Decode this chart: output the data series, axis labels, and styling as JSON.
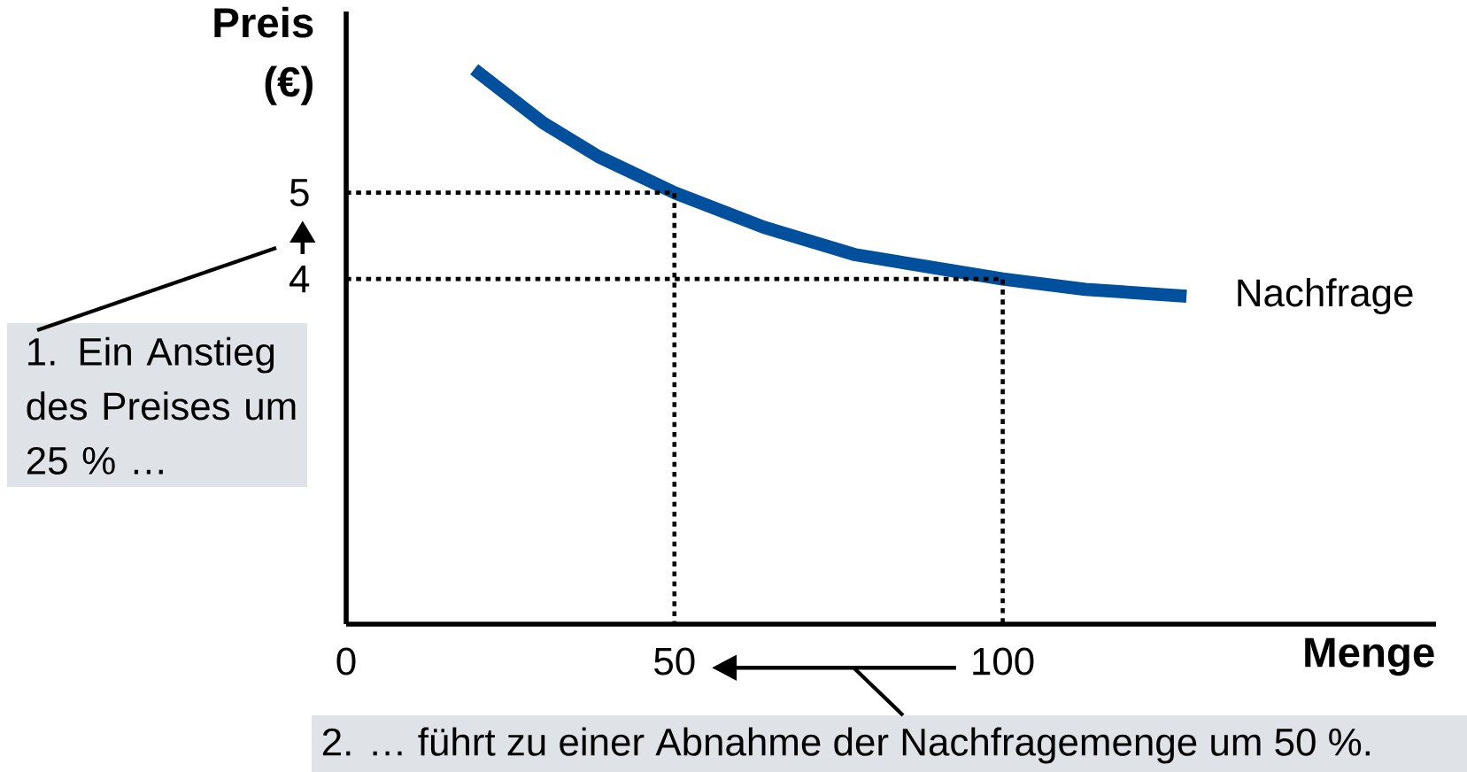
{
  "chart_data": {
    "type": "line",
    "xlabel": "Menge",
    "ylabel": "Preis (€)",
    "xlim": [
      0,
      166
    ],
    "ylim": [
      0,
      7.1
    ],
    "xticks": [
      0,
      50,
      100
    ],
    "yticks": [
      4,
      5
    ],
    "grid": false,
    "legend": false,
    "marker": "none",
    "series": [
      {
        "name": "Nachfrage",
        "color": "#00509e",
        "x": [
          19.5,
          30,
          38.4,
          50,
          63.6,
          77.6,
          100,
          112.6,
          128
        ],
        "values": [
          6.43,
          5.81,
          5.42,
          5,
          4.6,
          4.28,
          4,
          3.88,
          3.8
        ]
      },
      {
        "color": "#000000",
        "line_style": "dotted",
        "x": [
          0,
          50,
          50
        ],
        "values": [
          5,
          5,
          0
        ]
      },
      {
        "color": "#000000",
        "line_style": "dotted",
        "x": [
          0,
          100,
          100
        ],
        "values": [
          4,
          4,
          0
        ]
      }
    ],
    "annotations": [
      "1. Ein Anstieg des Preises um 25 % …",
      "2. … führt zu einer Abnahme der Nachfragemenge um 50 %."
    ]
  }
}
